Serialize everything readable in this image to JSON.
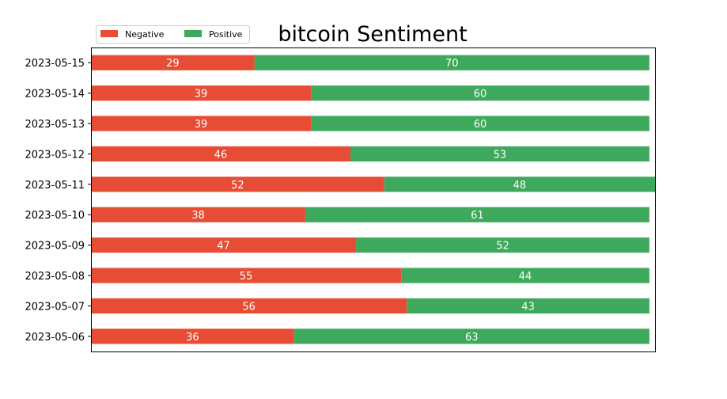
{
  "chart_data": {
    "type": "bar",
    "orientation": "horizontal",
    "stacked": true,
    "title": "bitcoin Sentiment",
    "xlabel": "",
    "ylabel": "",
    "x_axis_visible": false,
    "grid": false,
    "legend_position": "top-left",
    "categories": [
      "2023-05-15",
      "2023-05-14",
      "2023-05-13",
      "2023-05-12",
      "2023-05-11",
      "2023-05-10",
      "2023-05-09",
      "2023-05-08",
      "2023-05-07",
      "2023-05-06"
    ],
    "series": [
      {
        "name": "Negative",
        "color": "#e74c35",
        "values": [
          29,
          39,
          39,
          46,
          52,
          38,
          47,
          55,
          56,
          36
        ]
      },
      {
        "name": "Positive",
        "color": "#3ea95c",
        "values": [
          70,
          60,
          60,
          53,
          48,
          61,
          52,
          44,
          43,
          63
        ]
      }
    ]
  }
}
